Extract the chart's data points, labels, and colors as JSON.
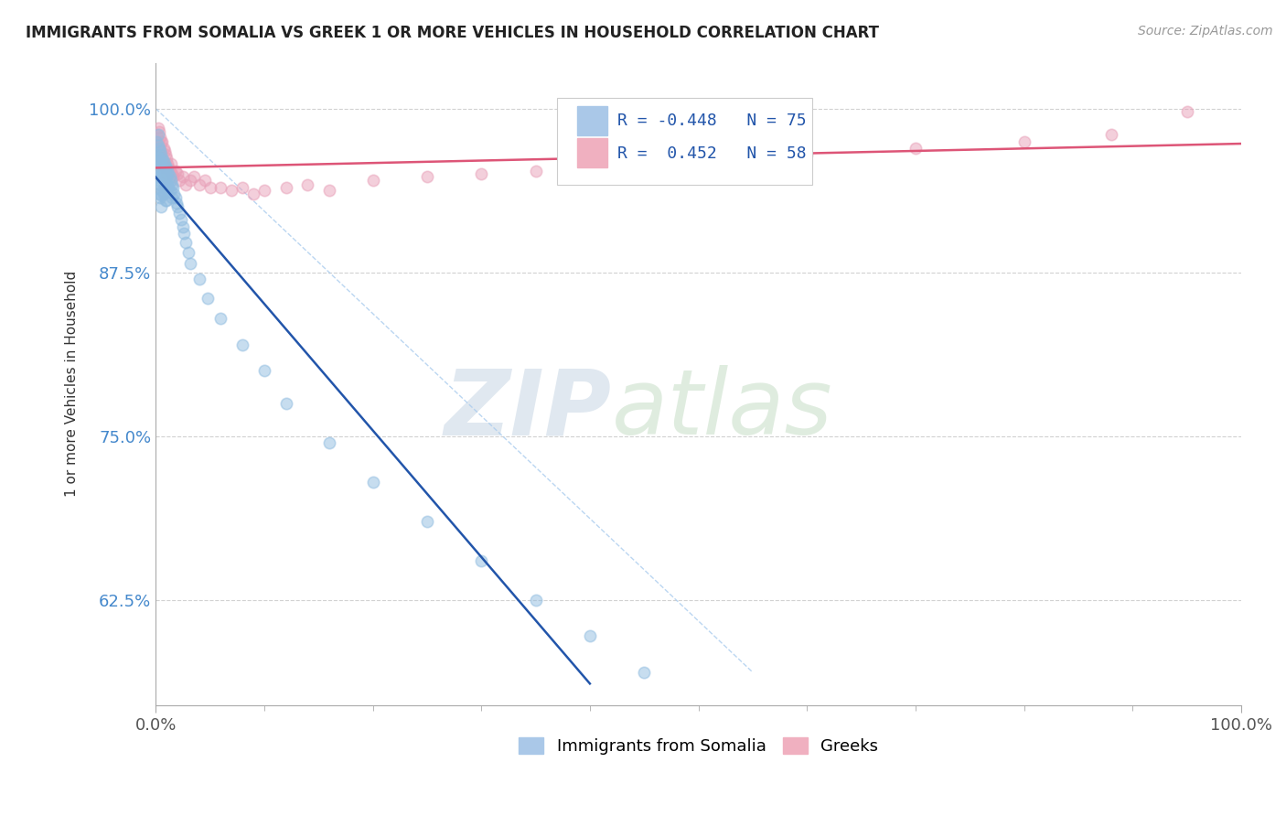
{
  "title": "IMMIGRANTS FROM SOMALIA VS GREEK 1 OR MORE VEHICLES IN HOUSEHOLD CORRELATION CHART",
  "source": "Source: ZipAtlas.com",
  "ylabel": "1 or more Vehicles in Household",
  "xlim": [
    0.0,
    1.0
  ],
  "ylim": [
    0.545,
    1.035
  ],
  "yticks": [
    0.625,
    0.75,
    0.875,
    1.0
  ],
  "ytick_labels": [
    "62.5%",
    "75.0%",
    "87.5%",
    "100.0%"
  ],
  "xtick_labels": [
    "0.0%",
    "100.0%"
  ],
  "R_somalia": -0.448,
  "N_somalia": 75,
  "R_greek": 0.452,
  "N_greek": 58,
  "somalia_color": "#90bce0",
  "greek_color": "#e8a0b8",
  "somalia_line_color": "#2255aa",
  "greek_line_color": "#dd5577",
  "somalia_points_x": [
    0.001,
    0.001,
    0.002,
    0.002,
    0.002,
    0.002,
    0.003,
    0.003,
    0.003,
    0.003,
    0.003,
    0.004,
    0.004,
    0.004,
    0.004,
    0.004,
    0.005,
    0.005,
    0.005,
    0.005,
    0.005,
    0.005,
    0.006,
    0.006,
    0.006,
    0.006,
    0.007,
    0.007,
    0.007,
    0.007,
    0.008,
    0.008,
    0.008,
    0.009,
    0.009,
    0.009,
    0.009,
    0.01,
    0.01,
    0.01,
    0.01,
    0.011,
    0.011,
    0.012,
    0.012,
    0.013,
    0.013,
    0.014,
    0.015,
    0.015,
    0.016,
    0.017,
    0.018,
    0.019,
    0.02,
    0.022,
    0.023,
    0.025,
    0.026,
    0.028,
    0.03,
    0.032,
    0.04,
    0.048,
    0.06,
    0.08,
    0.1,
    0.12,
    0.16,
    0.2,
    0.25,
    0.3,
    0.35,
    0.4,
    0.45
  ],
  "somalia_points_y": [
    0.975,
    0.965,
    0.98,
    0.972,
    0.96,
    0.948,
    0.97,
    0.962,
    0.955,
    0.945,
    0.935,
    0.968,
    0.96,
    0.952,
    0.942,
    0.932,
    0.965,
    0.958,
    0.95,
    0.942,
    0.934,
    0.925,
    0.962,
    0.955,
    0.948,
    0.938,
    0.96,
    0.952,
    0.945,
    0.935,
    0.958,
    0.95,
    0.94,
    0.955,
    0.948,
    0.94,
    0.93,
    0.955,
    0.948,
    0.94,
    0.93,
    0.952,
    0.942,
    0.95,
    0.94,
    0.948,
    0.938,
    0.945,
    0.942,
    0.932,
    0.94,
    0.935,
    0.932,
    0.928,
    0.925,
    0.92,
    0.915,
    0.91,
    0.905,
    0.898,
    0.89,
    0.882,
    0.87,
    0.855,
    0.84,
    0.82,
    0.8,
    0.775,
    0.745,
    0.715,
    0.685,
    0.655,
    0.625,
    0.598,
    0.57
  ],
  "greek_points_x": [
    0.001,
    0.001,
    0.002,
    0.002,
    0.003,
    0.003,
    0.004,
    0.004,
    0.005,
    0.005,
    0.005,
    0.006,
    0.006,
    0.007,
    0.007,
    0.008,
    0.008,
    0.009,
    0.009,
    0.01,
    0.01,
    0.011,
    0.012,
    0.013,
    0.014,
    0.015,
    0.016,
    0.018,
    0.02,
    0.022,
    0.025,
    0.028,
    0.032,
    0.035,
    0.04,
    0.045,
    0.05,
    0.06,
    0.07,
    0.08,
    0.09,
    0.1,
    0.12,
    0.14,
    0.16,
    0.2,
    0.25,
    0.3,
    0.35,
    0.4,
    0.45,
    0.5,
    0.55,
    0.6,
    0.7,
    0.8,
    0.88,
    0.95
  ],
  "greek_points_y": [
    0.98,
    0.968,
    0.985,
    0.975,
    0.982,
    0.97,
    0.978,
    0.965,
    0.975,
    0.968,
    0.958,
    0.975,
    0.962,
    0.97,
    0.958,
    0.968,
    0.955,
    0.965,
    0.955,
    0.962,
    0.95,
    0.958,
    0.955,
    0.952,
    0.958,
    0.95,
    0.948,
    0.952,
    0.95,
    0.945,
    0.948,
    0.942,
    0.945,
    0.948,
    0.942,
    0.945,
    0.94,
    0.94,
    0.938,
    0.94,
    0.935,
    0.938,
    0.94,
    0.942,
    0.938,
    0.945,
    0.948,
    0.95,
    0.952,
    0.955,
    0.958,
    0.96,
    0.962,
    0.965,
    0.97,
    0.975,
    0.98,
    0.998
  ],
  "background_color": "#ffffff",
  "legend_somalia": "Immigrants from Somalia",
  "legend_greek": "Greeks"
}
